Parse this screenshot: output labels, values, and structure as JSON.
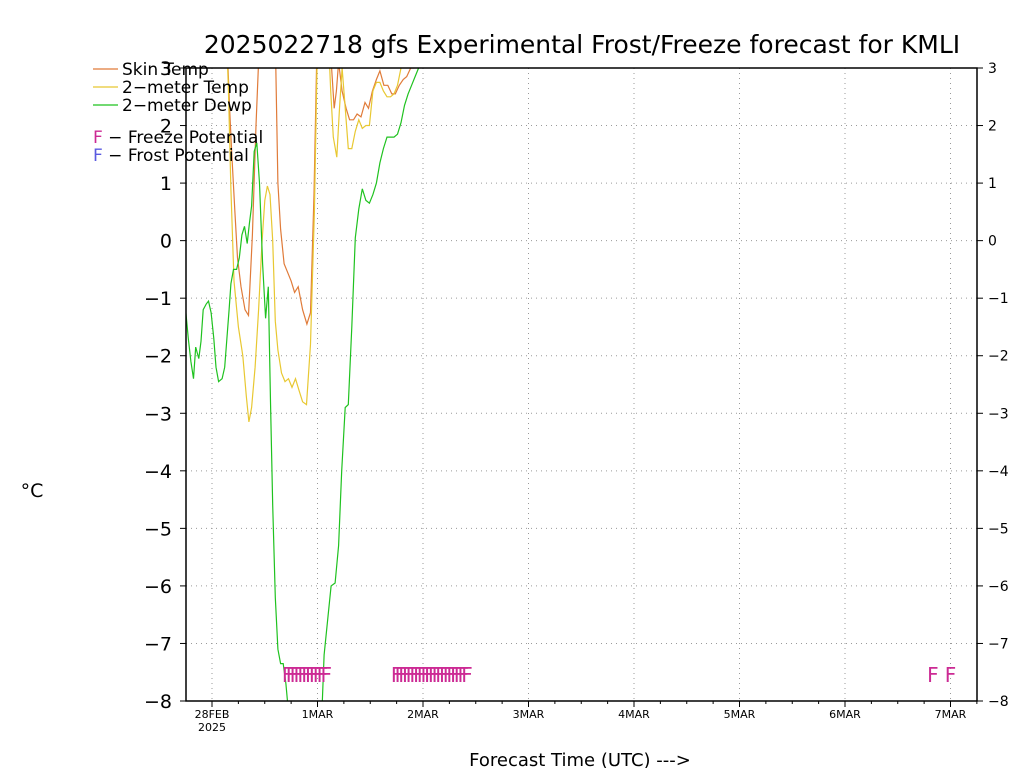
{
  "chart_data": {
    "type": "line",
    "title": "2025022718 gfs Experimental Frost/Freeze forecast for KMLI",
    "xlabel": "Forecast Time (UTC) --->",
    "ylabel": "°C",
    "ylim": [
      -8,
      3
    ],
    "yticks": [
      3,
      2,
      1,
      0,
      -1,
      -2,
      -3,
      -4,
      -5,
      -6,
      -7,
      -8
    ],
    "ytick_labels": [
      "3",
      "2",
      "1",
      "0",
      "−1",
      "−2",
      "−3",
      "−4",
      "−5",
      "−6",
      "−7",
      "−8"
    ],
    "ytick_labels_right": [
      "3",
      "2",
      "1",
      "0",
      "−1",
      "−2",
      "−3",
      "−4",
      "−5",
      "−6",
      "−7",
      "−8"
    ],
    "xlim_hours": [
      -6,
      144
    ],
    "xticks": [
      {
        "hours": 0,
        "label": "28FEB",
        "sub": "2025"
      },
      {
        "hours": 24,
        "label": "1MAR"
      },
      {
        "hours": 48,
        "label": "2MAR"
      },
      {
        "hours": 72,
        "label": "3MAR"
      },
      {
        "hours": 96,
        "label": "4MAR"
      },
      {
        "hours": 120,
        "label": "5MAR"
      },
      {
        "hours": 144,
        "label": "6MAR"
      },
      {
        "hours": 168,
        "label": "7MAR"
      }
    ],
    "grid": true,
    "legend": [
      {
        "name": "Skin Temp",
        "color": "#e07b39"
      },
      {
        "name": "2−meter Temp",
        "color": "#e8c832"
      },
      {
        "name": "2−meter Dewp",
        "color": "#1fc21f"
      }
    ],
    "potential_legend": [
      {
        "letter": "F",
        "text": " − Freeze Potential",
        "color": "#cc2a94"
      },
      {
        "letter": "F",
        "text": " − Frost Potential",
        "color": "#5a5ae0"
      }
    ],
    "series": [
      {
        "name": "Skin Temp",
        "color": "#e07b39",
        "points": [
          [
            3.3,
            3.5
          ],
          [
            3.6,
            3.1
          ],
          [
            4.0,
            2.3
          ],
          [
            4.5,
            1.5
          ],
          [
            5.2,
            0.5
          ],
          [
            5.8,
            -0.3
          ],
          [
            6.6,
            -0.8
          ],
          [
            7.5,
            -1.2
          ],
          [
            8.3,
            -1.3
          ],
          [
            9.2,
            0.1
          ],
          [
            10.0,
            2.0
          ],
          [
            10.8,
            3.5
          ],
          [
            14.4,
            3.5
          ],
          [
            15.0,
            1.0
          ],
          [
            15.6,
            0.2
          ],
          [
            16.4,
            -0.4
          ],
          [
            17.2,
            -0.55
          ],
          [
            18.0,
            -0.7
          ],
          [
            18.8,
            -0.9
          ],
          [
            19.6,
            -0.8
          ],
          [
            20.6,
            -1.2
          ],
          [
            21.6,
            -1.45
          ],
          [
            22.4,
            -1.25
          ],
          [
            23.2,
            0.8
          ],
          [
            23.9,
            3.5
          ],
          [
            26.3,
            3.5
          ],
          [
            27.2,
            3.0
          ],
          [
            27.8,
            2.3
          ],
          [
            28.3,
            2.6
          ],
          [
            28.8,
            3.1
          ],
          [
            29.6,
            2.6
          ],
          [
            30.5,
            2.3
          ],
          [
            31.3,
            2.1
          ],
          [
            32.2,
            2.1
          ],
          [
            33.0,
            2.2
          ],
          [
            33.9,
            2.15
          ],
          [
            34.8,
            2.4
          ],
          [
            35.6,
            2.3
          ],
          [
            36.5,
            2.6
          ],
          [
            37.4,
            2.8
          ],
          [
            38.2,
            2.95
          ],
          [
            39.1,
            2.7
          ],
          [
            40.0,
            2.7
          ],
          [
            40.9,
            2.55
          ],
          [
            41.7,
            2.55
          ],
          [
            42.6,
            2.7
          ],
          [
            43.5,
            2.8
          ],
          [
            44.3,
            2.85
          ],
          [
            45.2,
            3.0
          ],
          [
            46.0,
            3.0
          ]
        ]
      },
      {
        "name": "2−meter Temp",
        "color": "#e8c832",
        "points": [
          [
            3.3,
            3.5
          ],
          [
            3.7,
            2.7
          ],
          [
            4.3,
            0.9
          ],
          [
            5.0,
            -0.7
          ],
          [
            6.0,
            -1.5
          ],
          [
            7.0,
            -2.0
          ],
          [
            7.8,
            -2.7
          ],
          [
            8.4,
            -3.15
          ],
          [
            9.0,
            -2.9
          ],
          [
            9.8,
            -2.2
          ],
          [
            10.6,
            -1.2
          ],
          [
            11.4,
            0.0
          ],
          [
            12.0,
            0.7
          ],
          [
            12.6,
            0.95
          ],
          [
            13.2,
            0.8
          ],
          [
            13.8,
            0.0
          ],
          [
            14.4,
            -1.4
          ],
          [
            15.0,
            -1.9
          ],
          [
            15.8,
            -2.3
          ],
          [
            16.6,
            -2.45
          ],
          [
            17.4,
            -2.4
          ],
          [
            18.2,
            -2.55
          ],
          [
            19.0,
            -2.4
          ],
          [
            19.8,
            -2.6
          ],
          [
            20.6,
            -2.8
          ],
          [
            21.5,
            -2.85
          ],
          [
            22.4,
            -1.8
          ],
          [
            23.3,
            0.5
          ],
          [
            24.0,
            3.5
          ],
          [
            26.5,
            3.5
          ],
          [
            27.0,
            2.6
          ],
          [
            27.6,
            1.8
          ],
          [
            28.4,
            1.45
          ],
          [
            29.0,
            2.3
          ],
          [
            29.6,
            3.0
          ],
          [
            30.2,
            2.4
          ],
          [
            31.0,
            1.6
          ],
          [
            31.8,
            1.6
          ],
          [
            32.6,
            1.9
          ],
          [
            33.4,
            2.1
          ],
          [
            34.2,
            1.95
          ],
          [
            35.0,
            2.0
          ],
          [
            35.8,
            2.0
          ],
          [
            36.6,
            2.6
          ],
          [
            37.4,
            2.75
          ],
          [
            38.2,
            2.75
          ],
          [
            39.0,
            2.6
          ],
          [
            39.8,
            2.5
          ],
          [
            40.6,
            2.5
          ],
          [
            41.4,
            2.55
          ],
          [
            42.2,
            2.7
          ],
          [
            43.0,
            3.0
          ],
          [
            43.5,
            3.1
          ]
        ]
      },
      {
        "name": "2−meter Dewp",
        "color": "#1fc21f",
        "points": [
          [
            -6.0,
            -1.2
          ],
          [
            -5.4,
            -1.7
          ],
          [
            -4.8,
            -2.1
          ],
          [
            -4.2,
            -2.4
          ],
          [
            -3.7,
            -1.85
          ],
          [
            -3.0,
            -2.05
          ],
          [
            -2.5,
            -1.75
          ],
          [
            -2.0,
            -1.2
          ],
          [
            -1.3,
            -1.1
          ],
          [
            -0.8,
            -1.05
          ],
          [
            -0.2,
            -1.25
          ],
          [
            0.4,
            -1.7
          ],
          [
            0.9,
            -2.2
          ],
          [
            1.5,
            -2.45
          ],
          [
            2.3,
            -2.4
          ],
          [
            2.9,
            -2.2
          ],
          [
            3.4,
            -1.7
          ],
          [
            3.9,
            -1.2
          ],
          [
            4.3,
            -0.75
          ],
          [
            4.9,
            -0.5
          ],
          [
            5.6,
            -0.5
          ],
          [
            6.2,
            -0.3
          ],
          [
            6.8,
            0.1
          ],
          [
            7.4,
            0.25
          ],
          [
            8.0,
            -0.05
          ],
          [
            8.5,
            0.3
          ],
          [
            9.0,
            0.6
          ],
          [
            9.6,
            1.55
          ],
          [
            10.2,
            1.7
          ],
          [
            10.8,
            1.0
          ],
          [
            11.5,
            -0.4
          ],
          [
            12.2,
            -1.35
          ],
          [
            12.8,
            -0.8
          ],
          [
            13.3,
            -2.8
          ],
          [
            13.8,
            -4.6
          ],
          [
            14.4,
            -6.2
          ],
          [
            15.0,
            -7.1
          ],
          [
            15.6,
            -7.35
          ],
          [
            16.2,
            -7.35
          ],
          [
            16.8,
            -7.7
          ],
          [
            17.4,
            -8.2
          ],
          [
            25.0,
            -8.2
          ],
          [
            25.5,
            -7.2
          ],
          [
            26.3,
            -6.6
          ],
          [
            27.1,
            -6.0
          ],
          [
            28.0,
            -5.95
          ],
          [
            28.8,
            -5.3
          ],
          [
            29.5,
            -4.0
          ],
          [
            30.3,
            -2.9
          ],
          [
            31.0,
            -2.85
          ],
          [
            31.8,
            -1.5
          ],
          [
            32.6,
            0.05
          ],
          [
            33.4,
            0.55
          ],
          [
            34.2,
            0.9
          ],
          [
            35.0,
            0.7
          ],
          [
            35.8,
            0.65
          ],
          [
            36.6,
            0.8
          ],
          [
            37.4,
            1.0
          ],
          [
            38.2,
            1.35
          ],
          [
            39.0,
            1.6
          ],
          [
            39.8,
            1.8
          ],
          [
            40.6,
            1.8
          ],
          [
            41.4,
            1.8
          ],
          [
            42.2,
            1.85
          ],
          [
            43.0,
            2.05
          ],
          [
            43.8,
            2.35
          ],
          [
            44.6,
            2.55
          ],
          [
            45.4,
            2.7
          ],
          [
            46.2,
            2.85
          ],
          [
            47.0,
            3.0
          ]
        ]
      }
    ],
    "freeze_markers": [
      {
        "start_hours": 17.2,
        "end_hours": 26.0,
        "count": 11,
        "text": "FFFFFFFFFFF"
      },
      {
        "start_hours": 42.0,
        "end_hours": 58.0,
        "count": 20,
        "text": "FFFFFFFFFFFFFFFFFFFF"
      },
      {
        "start_hours": 164.0,
        "end_hours": 168.0,
        "count": 2,
        "text": "FF"
      }
    ],
    "freeze_color": "#cc2a94"
  }
}
